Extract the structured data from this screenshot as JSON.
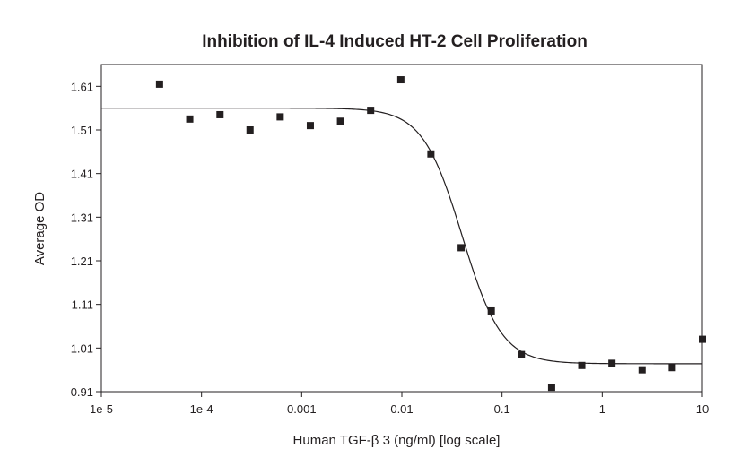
{
  "chart_data": {
    "type": "scatter",
    "title": "Inhibition of IL-4 Induced HT-2 Cell Proliferation",
    "xlabel": "Human TGF-β 3 (ng/ml) [log scale]",
    "ylabel": "Average OD",
    "x_scale": "log",
    "xlim": [
      1e-05,
      10
    ],
    "ylim": [
      0.91,
      1.66
    ],
    "x_ticks": [
      1e-05,
      0.0001,
      0.001,
      0.01,
      0.1,
      1,
      10
    ],
    "x_tick_labels": [
      "1e-5",
      "1e-4",
      "0.001",
      "0.01",
      "0.1",
      "1",
      "10"
    ],
    "y_ticks": [
      0.91,
      1.01,
      1.11,
      1.21,
      1.31,
      1.41,
      1.51,
      1.61
    ],
    "y_tick_labels": [
      "0.91",
      "1.01",
      "1.11",
      "1.21",
      "1.31",
      "1.41",
      "1.51",
      "1.61"
    ],
    "grid": false,
    "series": [
      {
        "marker": "square",
        "color": "#231f20",
        "x": [
          3.81e-05,
          7.63e-05,
          0.000153,
          0.000305,
          0.00061,
          0.00122,
          0.00244,
          0.00488,
          0.00977,
          0.0195,
          0.0391,
          0.0781,
          0.156,
          0.3125,
          0.625,
          1.25,
          2.5,
          5,
          10
        ],
        "y": [
          1.615,
          1.535,
          1.545,
          1.51,
          1.54,
          1.52,
          1.53,
          1.555,
          1.625,
          1.455,
          1.24,
          1.095,
          0.995,
          0.92,
          0.97,
          0.975,
          0.96,
          0.965,
          1.03
        ]
      }
    ],
    "fit": {
      "model": "4PL",
      "top": 1.56,
      "bottom": 0.974,
      "ec50": 0.04,
      "hill": 2.2
    }
  }
}
